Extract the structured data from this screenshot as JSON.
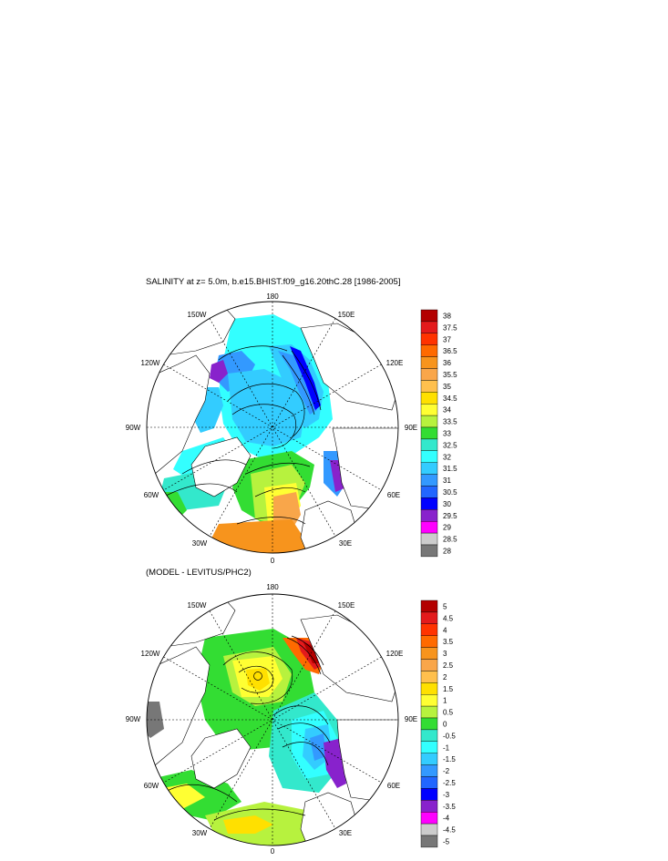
{
  "panels": [
    {
      "title": "SALINITY at z=   5.0m, b.e15.BHIST.f09_g16.20thC.28 [1986-2005]",
      "lon_labels": {
        "top": "180",
        "top_left": "150W",
        "top_right": "150E",
        "left_upper": "120W",
        "right_upper": "120E",
        "left": "90W",
        "right": "90E",
        "left_lower": "60W",
        "right_lower": "60E",
        "bottom_left": "30W",
        "bottom_right": "30E",
        "bottom": "0"
      },
      "colorbar": {
        "labels": [
          "38",
          "37.5",
          "37",
          "36.5",
          "36",
          "35.5",
          "35",
          "34.5",
          "34",
          "33.5",
          "33",
          "32.5",
          "32",
          "31.5",
          "31",
          "30.5",
          "30",
          "29.5",
          "29",
          "28.5",
          "28"
        ],
        "colors": [
          "#b30000",
          "#e31a1c",
          "#ff3300",
          "#ff6a00",
          "#f7941d",
          "#f9a64a",
          "#ffc04d",
          "#ffe000",
          "#ffff33",
          "#b7f23e",
          "#33dd33",
          "#33e8cc",
          "#33ffff",
          "#33ccff",
          "#3399ff",
          "#2266ff",
          "#0000ff",
          "#8822cc",
          "#ff00ff",
          "#cccccc",
          "#777777"
        ]
      }
    },
    {
      "title": "(MODEL - LEVITUS/PHC2)",
      "lon_labels": {
        "top": "180",
        "top_left": "150W",
        "top_right": "150E",
        "left_upper": "120W",
        "right_upper": "120E",
        "left": "90W",
        "right": "90E",
        "left_lower": "60W",
        "right_lower": "60E",
        "bottom_left": "30W",
        "bottom_right": "30E",
        "bottom": "0"
      },
      "colorbar": {
        "labels": [
          "5",
          "4.5",
          "4",
          "3.5",
          "3",
          "2.5",
          "2",
          "1.5",
          "1",
          "0.5",
          "0",
          "-0.5",
          "-1",
          "-1.5",
          "-2",
          "-2.5",
          "-3",
          "-3.5",
          "-4",
          "-4.5",
          "-5"
        ],
        "colors": [
          "#b30000",
          "#e31a1c",
          "#ff3300",
          "#ff6a00",
          "#f7941d",
          "#f9a64a",
          "#ffc04d",
          "#ffe000",
          "#ffff33",
          "#b7f23e",
          "#33dd33",
          "#33e8cc",
          "#33ffff",
          "#33ccff",
          "#3399ff",
          "#2266ff",
          "#0000ff",
          "#8822cc",
          "#ff00ff",
          "#cccccc",
          "#777777"
        ]
      }
    }
  ]
}
